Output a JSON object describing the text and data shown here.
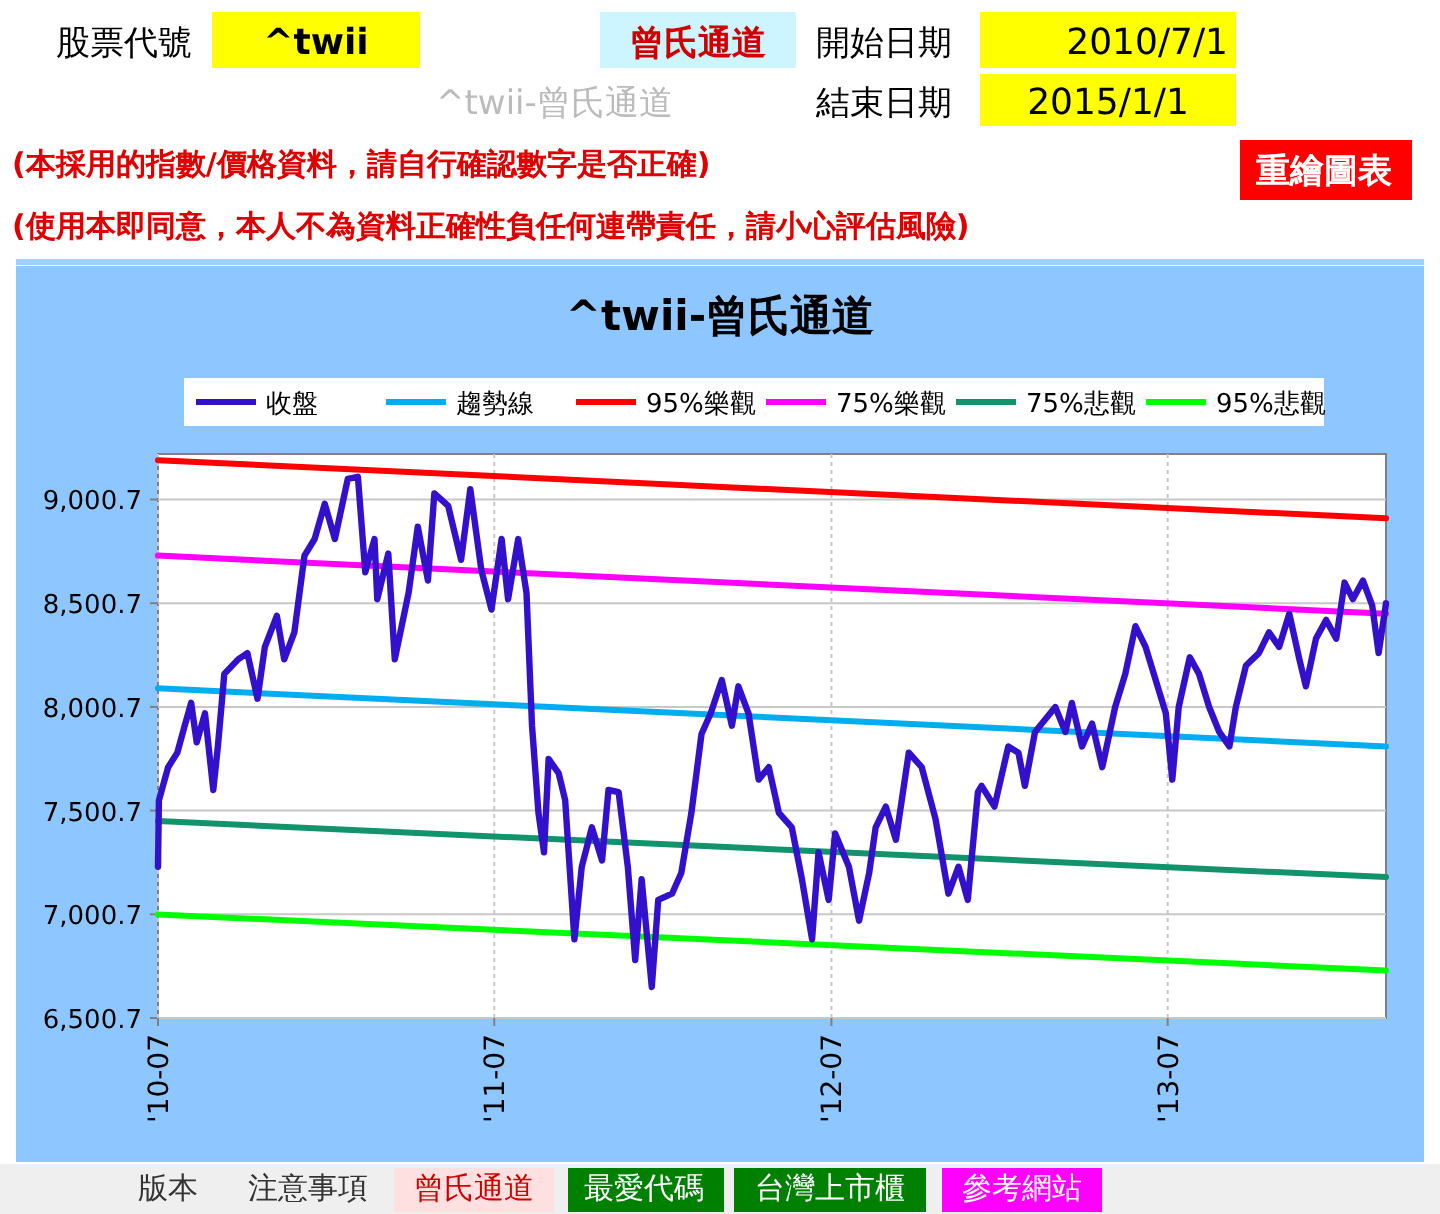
{
  "chart_data": {
    "type": "line",
    "title": "^twii-曾氏通道",
    "xlim": [
      "2010-07-01",
      "2014-02-23"
    ],
    "ylim": [
      6500.7,
      9220
    ],
    "xticks": [
      {
        "value": "2010-07-01",
        "label": "'10-07"
      },
      {
        "value": "2011-07-01",
        "label": "'11-07"
      },
      {
        "value": "2012-07-01",
        "label": "'12-07"
      },
      {
        "value": "2013-07-01",
        "label": "'13-07"
      }
    ],
    "yticks": [
      {
        "value": 6500.7,
        "label": "6,500.7"
      },
      {
        "value": 7000.7,
        "label": "7,000.7"
      },
      {
        "value": 7500.7,
        "label": "7,500.7"
      },
      {
        "value": 8000.7,
        "label": "8,000.7"
      },
      {
        "value": 8500.7,
        "label": "8,500.7"
      },
      {
        "value": 9000.7,
        "label": "9,000.7"
      }
    ],
    "grid": true,
    "legend": "top",
    "marker": "none",
    "series": [
      {
        "name": "收盤",
        "color": "#3311cc",
        "x": [
          "2010-07-01",
          "2010-07-02",
          "2010-07-12",
          "2010-07-22",
          "2010-07-30",
          "2010-08-06",
          "2010-08-12",
          "2010-08-21",
          "2010-08-30",
          "2010-09-04",
          "2010-09-11",
          "2010-09-26",
          "2010-10-06",
          "2010-10-17",
          "2010-10-25",
          "2010-11-07",
          "2010-11-15",
          "2010-11-26",
          "2010-12-07",
          "2010-12-18",
          "2010-12-29",
          "2011-01-09",
          "2011-01-23",
          "2011-02-03",
          "2011-02-11",
          "2011-02-21",
          "2011-02-24",
          "2011-03-08",
          "2011-03-15",
          "2011-03-30",
          "2011-04-09",
          "2011-04-20",
          "2011-04-27",
          "2011-05-12",
          "2011-05-26",
          "2011-06-05",
          "2011-06-17",
          "2011-06-28",
          "2011-07-09",
          "2011-07-16",
          "2011-07-27",
          "2011-08-05",
          "2011-08-11",
          "2011-08-18",
          "2011-08-24",
          "2011-08-29",
          "2011-09-09",
          "2011-09-16",
          "2011-09-26",
          "2011-10-04",
          "2011-10-15",
          "2011-10-26",
          "2011-11-02",
          "2011-11-13",
          "2011-11-23",
          "2011-12-01",
          "2011-12-08",
          "2011-12-19",
          "2011-12-26",
          "2012-01-10",
          "2012-01-20",
          "2012-01-31",
          "2012-02-11",
          "2012-02-21",
          "2012-03-04",
          "2012-03-15",
          "2012-03-22",
          "2012-04-02",
          "2012-04-13",
          "2012-04-24",
          "2012-05-05",
          "2012-05-19",
          "2012-05-30",
          "2012-06-10",
          "2012-06-17",
          "2012-06-28",
          "2012-07-05",
          "2012-07-20",
          "2012-07-31",
          "2012-08-11",
          "2012-08-18",
          "2012-08-29",
          "2012-09-09",
          "2012-09-23",
          "2012-10-07",
          "2012-10-22",
          "2012-11-05",
          "2012-11-16",
          "2012-11-26",
          "2012-12-07",
          "2012-12-11",
          "2012-12-25",
          "2013-01-09",
          "2013-01-20",
          "2013-01-27",
          "2013-02-07",
          "2013-02-18",
          "2013-03-01",
          "2013-03-12",
          "2013-03-19",
          "2013-03-30",
          "2013-04-10",
          "2013-04-21",
          "2013-05-05",
          "2013-05-16",
          "2013-05-27",
          "2013-06-07",
          "2013-06-18",
          "2013-06-29",
          "2013-07-06",
          "2013-07-13",
          "2013-07-25",
          "2013-08-04",
          "2013-08-15",
          "2013-08-26",
          "2013-09-06",
          "2013-09-13",
          "2013-09-24",
          "2013-10-08",
          "2013-10-19",
          "2013-10-30",
          "2013-11-10",
          "2013-11-21",
          "2013-11-28",
          "2013-12-09",
          "2013-12-20",
          "2013-12-31",
          "2014-01-09",
          "2014-01-18",
          "2014-01-29",
          "2014-02-08",
          "2014-02-15",
          "2014-02-23"
        ],
        "values": [
          7230,
          7550,
          7710,
          7780,
          7910,
          8020,
          7830,
          7970,
          7600,
          7810,
          8160,
          8230,
          8260,
          8040,
          8290,
          8440,
          8230,
          8360,
          8730,
          8810,
          8980,
          8810,
          9100,
          9110,
          8650,
          8810,
          8520,
          8740,
          8230,
          8550,
          8870,
          8610,
          9030,
          8970,
          8710,
          9050,
          8660,
          8470,
          8810,
          8520,
          8810,
          8550,
          7910,
          7490,
          7300,
          7750,
          7680,
          7550,
          6880,
          7230,
          7420,
          7260,
          7600,
          7590,
          7230,
          6780,
          7170,
          6650,
          7070,
          7100,
          7200,
          7490,
          7870,
          7970,
          8130,
          7910,
          8100,
          7970,
          7650,
          7710,
          7490,
          7420,
          7170,
          6880,
          7300,
          7070,
          7390,
          7230,
          6970,
          7200,
          7420,
          7520,
          7360,
          7780,
          7710,
          7460,
          7100,
          7230,
          7070,
          7590,
          7620,
          7520,
          7810,
          7780,
          7620,
          7880,
          7940,
          8000,
          7880,
          8020,
          7810,
          7920,
          7710,
          8000,
          8160,
          8390,
          8290,
          8130,
          7970,
          7650,
          8000,
          8240,
          8160,
          8000,
          7880,
          7810,
          8000,
          8200,
          8260,
          8360,
          8290,
          8450,
          8230,
          8100,
          8330,
          8420,
          8330,
          8600,
          8520,
          8610,
          8490,
          8260,
          8500
        ]
      },
      {
        "name": "趨勢線",
        "color": "#00aeef",
        "x": [
          "2010-07-01",
          "2014-02-23"
        ],
        "values": [
          8090,
          7810
        ]
      },
      {
        "name": "95%樂觀",
        "color": "#ff0000",
        "x": [
          "2010-07-01",
          "2014-02-23"
        ],
        "values": [
          9190,
          8910
        ]
      },
      {
        "name": "75%樂觀",
        "color": "#ff00ff",
        "x": [
          "2010-07-01",
          "2014-02-23"
        ],
        "values": [
          8730,
          8450
        ]
      },
      {
        "name": "75%悲觀",
        "color": "#12936c",
        "x": [
          "2010-07-01",
          "2014-02-23"
        ],
        "values": [
          7450,
          7180
        ]
      },
      {
        "name": "95%悲觀",
        "color": "#00ff00",
        "x": [
          "2010-07-01",
          "2014-02-23"
        ],
        "values": [
          7000,
          6730
        ]
      }
    ],
    "annotations": [
      "股票代號",
      "^twii",
      "曾氏通道",
      "開始日期",
      "2010/7/1",
      "^twii-曾氏通道",
      "結束日期",
      "2015/1/1",
      "(本採用的指數/價格資料，請自行確認數字是否正確)",
      "(使用本即同意，本人不為資料正確性負任何連帶責任，請小心評估風險)",
      "重繪圖表",
      "版本",
      "注意事項",
      "曾氏通道",
      "最愛代碼",
      "台灣上市櫃",
      "參考網站"
    ]
  }
}
